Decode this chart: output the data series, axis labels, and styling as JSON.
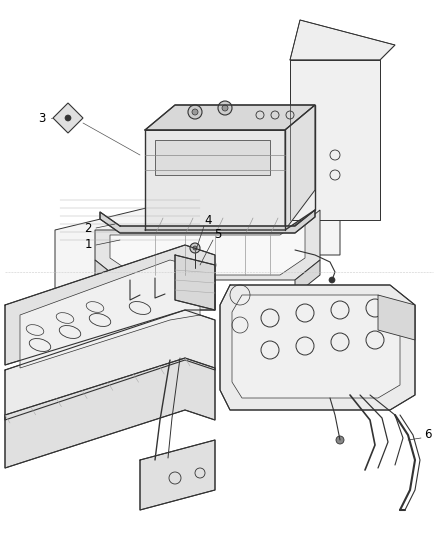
{
  "background_color": "#ffffff",
  "line_color": "#333333",
  "label_color": "#000000",
  "fig_width": 4.38,
  "fig_height": 5.33,
  "dpi": 100,
  "label_font_size": 8.5,
  "callout_lw": 0.6,
  "drawing_lw": 0.7,
  "top_section": {
    "y_min": 0.42,
    "y_max": 1.0
  },
  "bottom_section": {
    "y_min": 0.0,
    "y_max": 0.41
  }
}
